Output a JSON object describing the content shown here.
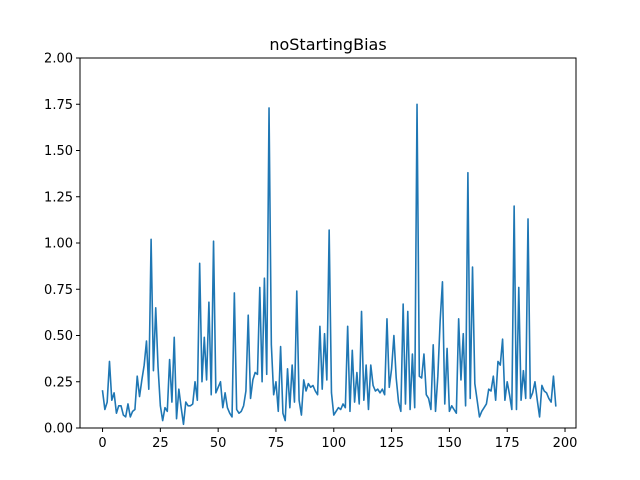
{
  "chart_data": {
    "type": "line",
    "title": "noStartingBias",
    "xlabel": "",
    "ylabel": "",
    "xlim": [
      -9.75,
      204.75
    ],
    "ylim": [
      0,
      2.0
    ],
    "xticks": [
      0,
      25,
      50,
      75,
      100,
      125,
      150,
      175,
      200
    ],
    "yticks": [
      0.0,
      0.25,
      0.5,
      0.75,
      1.0,
      1.25,
      1.5,
      1.75,
      2.0
    ],
    "xtick_labels": [
      "0",
      "25",
      "50",
      "75",
      "100",
      "125",
      "150",
      "175",
      "200"
    ],
    "ytick_labels": [
      "0.00",
      "0.25",
      "0.50",
      "0.75",
      "1.00",
      "1.25",
      "1.50",
      "1.75",
      "2.00"
    ],
    "grid": false,
    "series": [
      {
        "color": "#1f77b4",
        "values": [
          0.2,
          0.1,
          0.14,
          0.36,
          0.15,
          0.19,
          0.08,
          0.12,
          0.12,
          0.07,
          0.06,
          0.13,
          0.06,
          0.09,
          0.1,
          0.28,
          0.17,
          0.26,
          0.34,
          0.47,
          0.21,
          1.02,
          0.31,
          0.65,
          0.33,
          0.12,
          0.04,
          0.11,
          0.09,
          0.37,
          0.14,
          0.49,
          0.05,
          0.21,
          0.11,
          0.02,
          0.14,
          0.12,
          0.12,
          0.13,
          0.25,
          0.15,
          0.89,
          0.25,
          0.49,
          0.26,
          0.68,
          0.18,
          1.01,
          0.19,
          0.22,
          0.25,
          0.11,
          0.19,
          0.11,
          0.08,
          0.06,
          0.73,
          0.1,
          0.08,
          0.09,
          0.12,
          0.2,
          0.61,
          0.16,
          0.26,
          0.3,
          0.29,
          0.76,
          0.25,
          0.81,
          0.29,
          1.73,
          0.45,
          0.18,
          0.25,
          0.09,
          0.44,
          0.08,
          0.04,
          0.32,
          0.11,
          0.34,
          0.14,
          0.74,
          0.15,
          0.07,
          0.26,
          0.2,
          0.24,
          0.22,
          0.23,
          0.2,
          0.18,
          0.55,
          0.21,
          0.51,
          0.26,
          1.07,
          0.19,
          0.07,
          0.09,
          0.11,
          0.1,
          0.13,
          0.11,
          0.55,
          0.09,
          0.42,
          0.14,
          0.3,
          0.13,
          0.63,
          0.15,
          0.34,
          0.1,
          0.34,
          0.23,
          0.2,
          0.21,
          0.19,
          0.21,
          0.18,
          0.59,
          0.22,
          0.32,
          0.5,
          0.27,
          0.14,
          0.09,
          0.67,
          0.13,
          0.63,
          0.1,
          0.4,
          0.11,
          1.75,
          0.28,
          0.27,
          0.4,
          0.18,
          0.16,
          0.1,
          0.45,
          0.09,
          0.28,
          0.58,
          0.79,
          0.13,
          0.43,
          0.09,
          0.12,
          0.1,
          0.08,
          0.59,
          0.26,
          0.51,
          0.12,
          1.38,
          0.16,
          0.87,
          0.24,
          0.15,
          0.06,
          0.09,
          0.11,
          0.13,
          0.21,
          0.2,
          0.28,
          0.15,
          0.36,
          0.34,
          0.48,
          0.15,
          0.25,
          0.18,
          0.1,
          1.2,
          0.1,
          0.76,
          0.15,
          0.31,
          0.16,
          1.13,
          0.16,
          0.19,
          0.25,
          0.15,
          0.06,
          0.23,
          0.2,
          0.19,
          0.16,
          0.14,
          0.28,
          0.12
        ]
      }
    ]
  }
}
